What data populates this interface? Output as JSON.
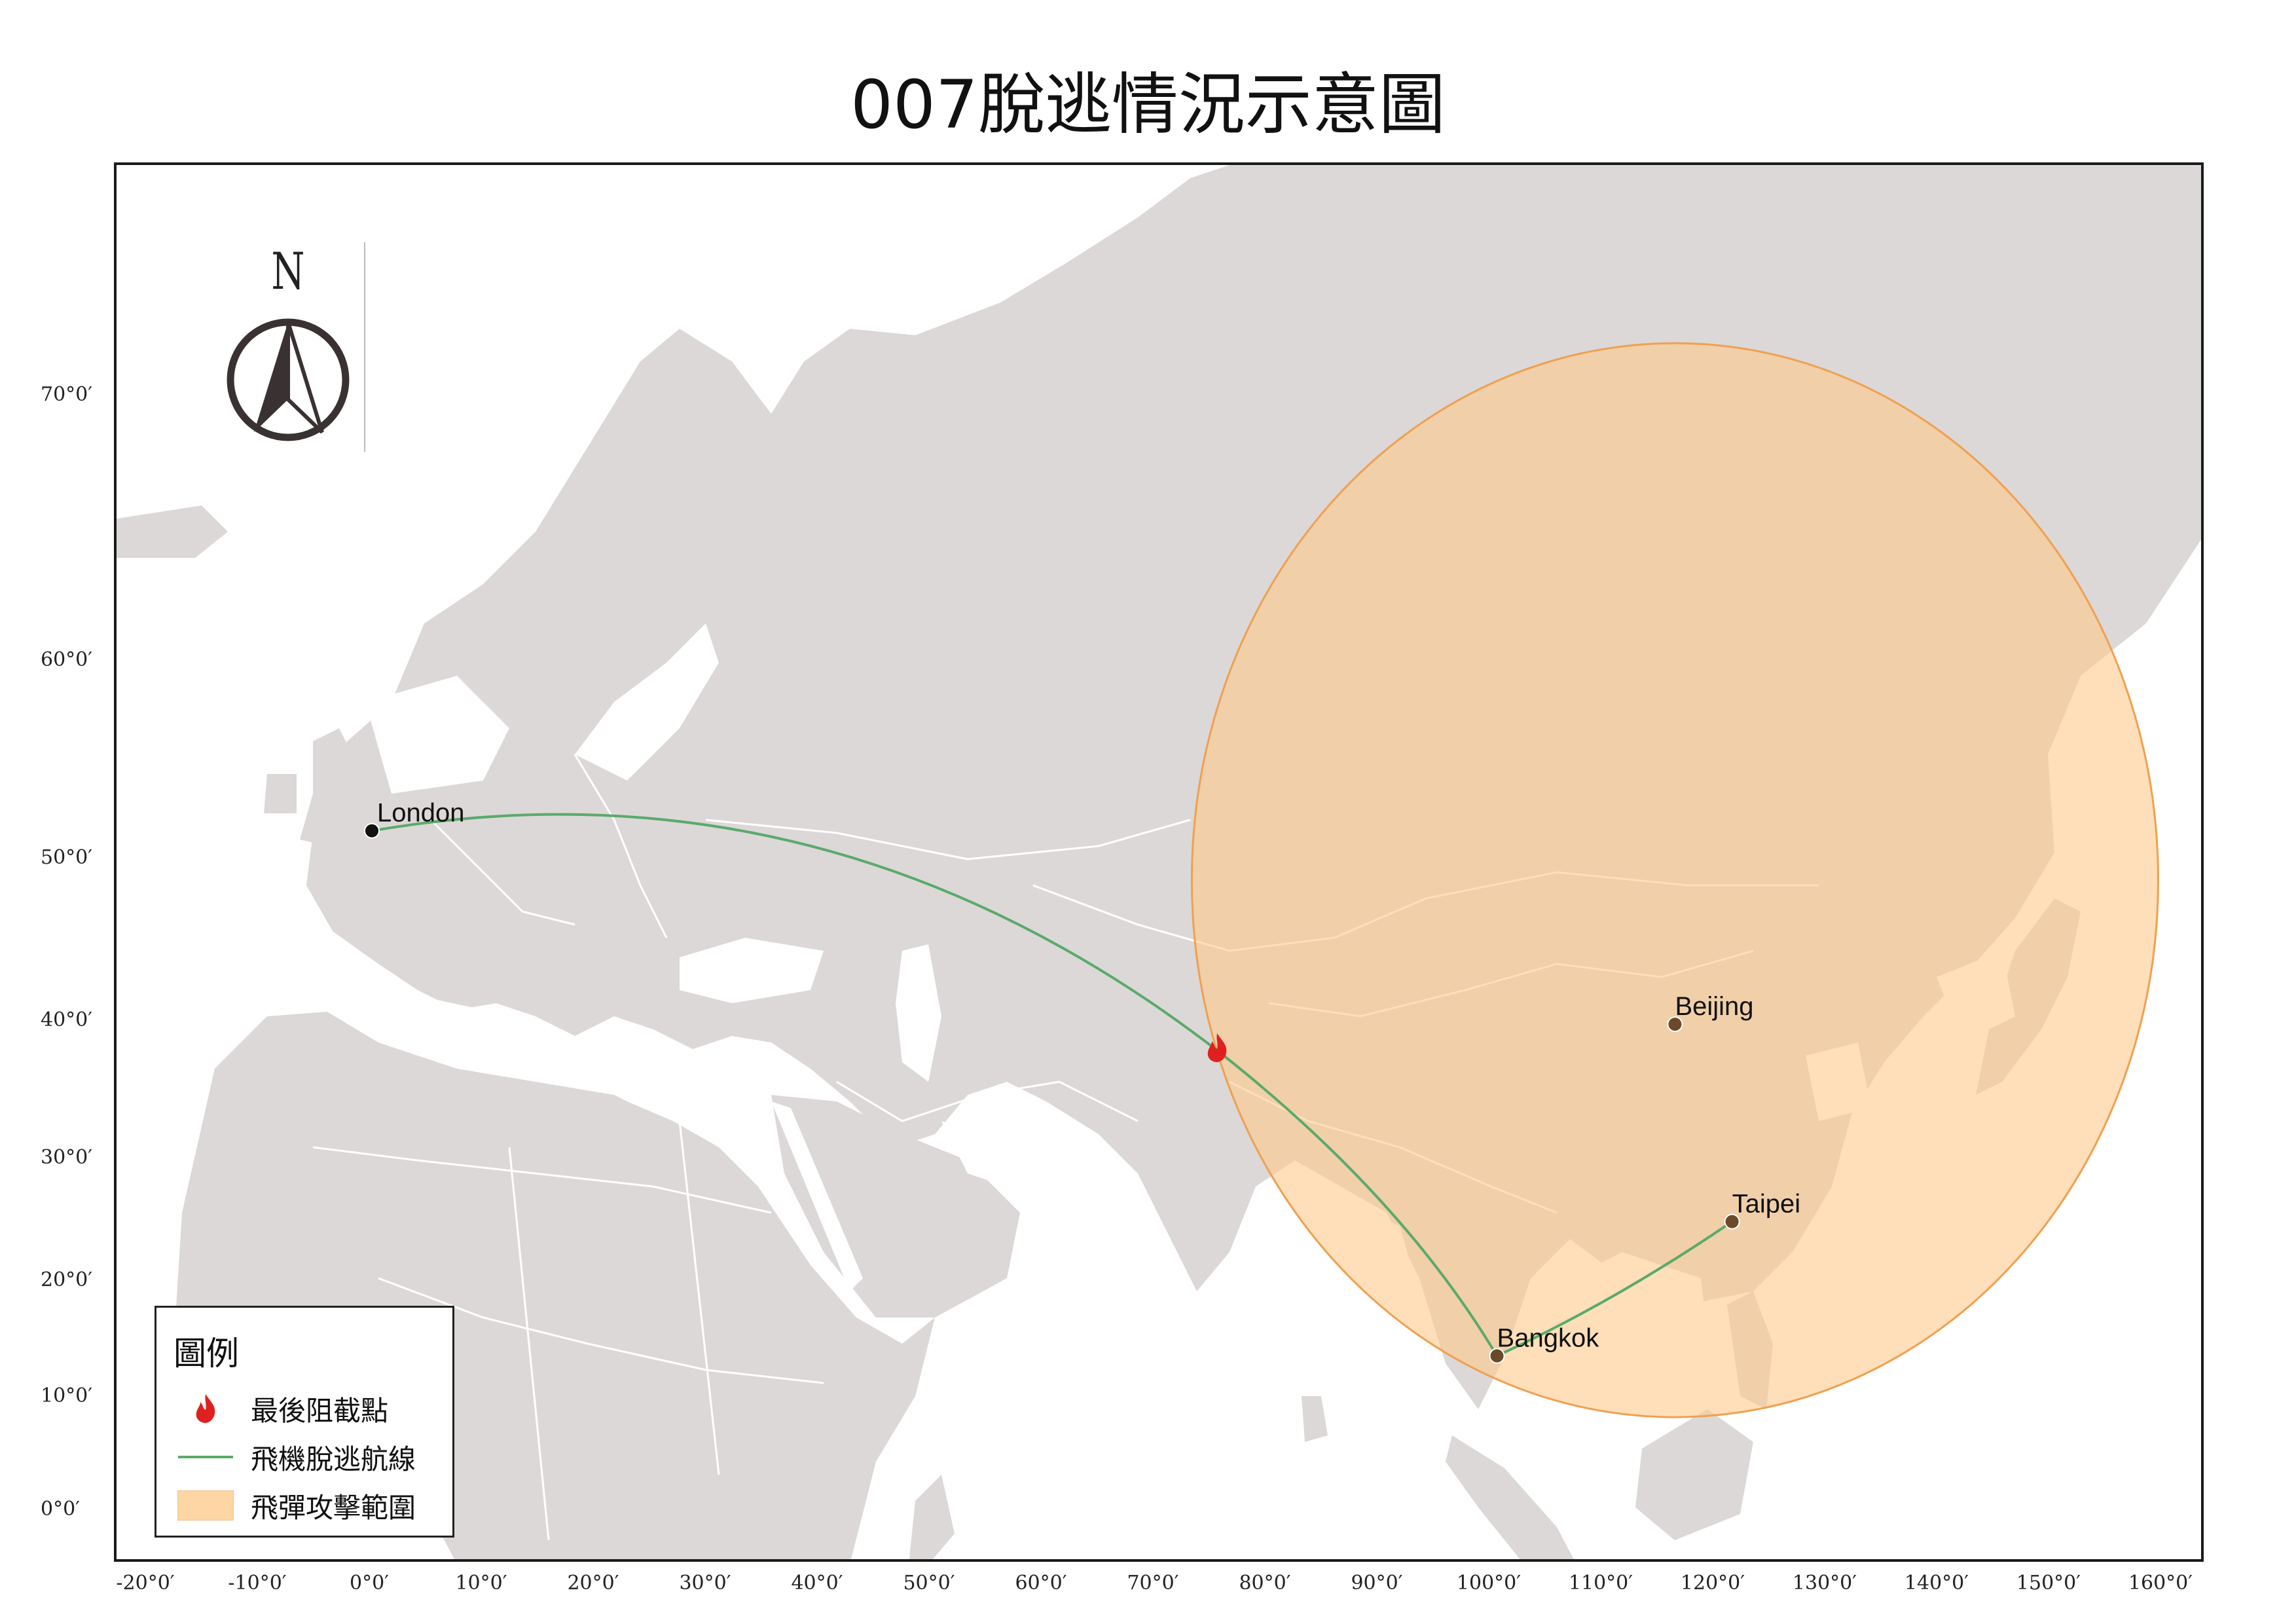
{
  "title": "007脫逃情況示意圖",
  "north_arrow": {
    "label": "N",
    "icon": "north-arrow-icon"
  },
  "lat_labels": [
    "70°0′",
    "60°0′",
    "50°0′",
    "40°0′",
    "30°0′",
    "20°0′",
    "10°0′",
    "0°0′"
  ],
  "lon_labels": [
    "-20°0′",
    "-10°0′",
    "0°0′",
    "10°0′",
    "20°0′",
    "30°0′",
    "40°0′",
    "50°0′",
    "60°0′",
    "70°0′",
    "80°0′",
    "90°0′",
    "100°0′",
    "110°0′",
    "120°0′",
    "130°0′",
    "140°0′",
    "150°0′",
    "160°0′"
  ],
  "cities": [
    {
      "name": "London",
      "lon": 0,
      "lat": 51.5,
      "color": "#111111"
    },
    {
      "name": "Beijing",
      "lon": 116.4,
      "lat": 39.9,
      "color": "#6b4a2b"
    },
    {
      "name": "Taipei",
      "lon": 121.5,
      "lat": 25.0,
      "color": "#6b4a2b"
    },
    {
      "name": "Bangkok",
      "lon": 100.5,
      "lat": 13.7,
      "color": "#6b4a2b"
    }
  ],
  "intercept_point": {
    "lon": 75.5,
    "lat": 38.0,
    "icon": "fire-icon",
    "color": "#e02020"
  },
  "missile_range": {
    "center_lon": 116.4,
    "center_lat": 39.9,
    "fill": "#fdc98a",
    "stroke": "#f0a050"
  },
  "colors": {
    "land": "#dcd8d8",
    "sea": "#ffffff",
    "route": "#5aaa6a",
    "border": "#ffffff"
  },
  "legend": {
    "title": "圖例",
    "items": [
      {
        "label": "最後阻截點",
        "icon": "fire-icon"
      },
      {
        "label": "飛機脫逃航線",
        "icon": "green-line-icon"
      },
      {
        "label": "飛彈攻擊範圍",
        "icon": "orange-swatch-icon"
      }
    ]
  }
}
